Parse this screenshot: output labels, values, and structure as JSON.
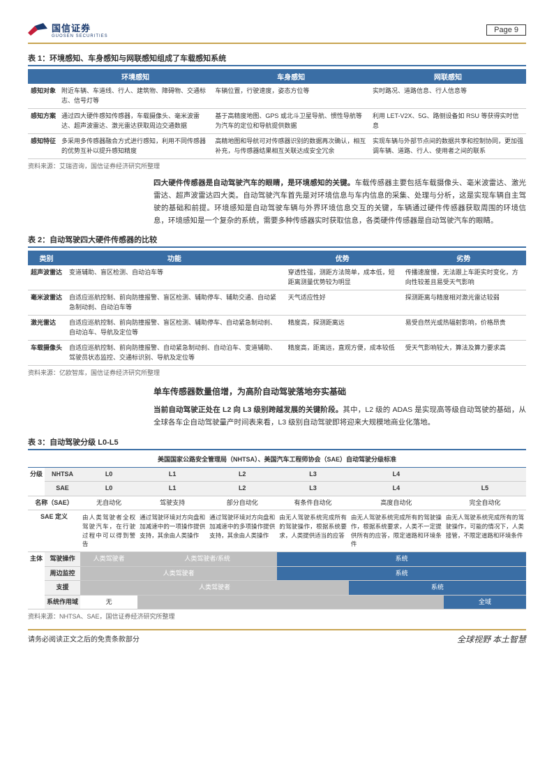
{
  "header": {
    "company_name": "国信证券",
    "company_sub": "GUOSEN SECURITIES",
    "page_label": "Page   9"
  },
  "colors": {
    "accent_border": "#c8a450",
    "table_header_bg": "#3a6ea5",
    "grey_cell": "#bfbfbf"
  },
  "table1": {
    "title": "表 1：环境感知、车身感知与网联感知组成了车载感知系统",
    "columns": [
      "",
      "环境感知",
      "车身感知",
      "网联感知"
    ],
    "rows": [
      {
        "label": "感知对象",
        "c1": "附近车辆、车道线、行人、建筑物、障碍物、交通标志、信号灯等",
        "c2": "车辆位置，行驶速度，姿态方位等",
        "c3": "实时路况、道路信息、行人信息等"
      },
      {
        "label": "感知方案",
        "c1": "通过四大硬件感知传感器，车载摄像头、毫米波雷达、超声波雷达、激光雷达获取周边交通数据",
        "c2": "基于高精度地图、GPS 或北斗卫星导航、惯性导航等为汽车的定位和导航提供数据",
        "c3": "利用 LET-V2X、5G、路侧设备如 RSU 等获得实时信息"
      },
      {
        "label": "感知特征",
        "c1": "多采用多传感器融合方式进行感知，利用不同传感器的优势互补以提升感知精度",
        "c2": "高精地图和导航可对传感器识别的数据再次确认，相互补充，与传感器结果相互关联达成安全冗余",
        "c3": "实现车辆与外部节点间的数据共享和控制协同，更加强调车辆、道路、行人、使用者之间的联系"
      }
    ],
    "source": "资料来源：艾瑞咨询，国信证券经济研究所整理"
  },
  "para1": {
    "bold": "四大硬件传感器是自动驾驶汽车的眼睛，是环境感知的关键。",
    "text": "车载传感器主要包括车载摄像头、毫米波雷达、激光雷达、超声波雷达四大类。自动驾驶汽车首先是对环境信息与车内信息的采集、处理与分析，这是实现车辆自主驾驶的基础和前提。环境感知是自动驾驶车辆与外界环境信息交互的关键，车辆通过硬件传感器获取周围的环境信息，环境感知是一个复杂的系统，需要多种传感器实时获取信息，各类硬件传感器是自动驾驶汽车的眼睛。"
  },
  "table2": {
    "title": "表 2：自动驾驶四大硬件传感器的比较",
    "columns": [
      "类别",
      "功能",
      "优势",
      "劣势"
    ],
    "rows": [
      {
        "label": "超声波雷达",
        "c1": "变道辅助、盲区检测、自动泊车等",
        "c2": "穿透性强，测距方法简单，成本低，短距离测量优势较为明显",
        "c3": "传播速度慢，无法跟上车距实时变化，方向性较差且易受天气影响"
      },
      {
        "label": "毫米波雷达",
        "c1": "自适应巡航控制、前向防撞报警、盲区检测、辅助停车、辅助交通、自动紧急制动刹、自动泊车等",
        "c2": "天气适应性好",
        "c3": "探测距离与精度相对激光雷达较弱"
      },
      {
        "label": "激光雷达",
        "c1": "自适应巡航控制、前向防撞报警、盲区检测、辅助停车、自动紧急制动刹、自动泊车、导航及定位等",
        "c2": "精度高，探测距离远",
        "c3": "易受自然光或热辐射影响，价格昂贵"
      },
      {
        "label": "车载摄像头",
        "c1": "自适应巡航控制、前向防撞报警、自动紧急制动刹、自动泊车、变道辅助、驾驶员状态监控、交通标识别、导航及定位等",
        "c2": "精度高，距离远，直观方便，成本较低",
        "c3": "受天气影响较大，算法及算力要求高"
      }
    ],
    "source": "资料来源：亿欧智库，国信证券经济研究所整理"
  },
  "section_title": "单车传感器数量倍增，为高阶自动驾驶落地夯实基础",
  "para2": {
    "bold": "当前自动驾驶正处在 L2 向 L3 级别跨越发展的关键阶段。",
    "text": "其中，L2 级的 ADAS 是实现高等级自动驾驶的基础，从全球各车企自动驾驶量产时间表来看，L3 级别自动驾驶即将迎来大规模地商业化落地。"
  },
  "table3": {
    "title": "表 3：自动驾驶分级 L0-L5",
    "super_header": "美国国家公路安全管理局（NHTSA）、美国汽车工程师协会（SAE）自动驾驶分级标准",
    "level_rows": [
      {
        "label": "分级",
        "sub1": "NHTSA",
        "cells": [
          "L0",
          "L1",
          "L2",
          "L3",
          "L4",
          ""
        ]
      },
      {
        "label": "",
        "sub1": "SAE",
        "cells": [
          "L0",
          "L1",
          "L2",
          "L3",
          "L4",
          "L5"
        ]
      }
    ],
    "name_row": {
      "label": "名称（SAE）",
      "cells": [
        "无自动化",
        "驾驶支持",
        "部分自动化",
        "有条件自动化",
        "高度自动化",
        "完全自动化"
      ]
    },
    "def_row": {
      "label": "SAE 定义",
      "cells": [
        "由人类驾驶者全权驾驶汽车，在行驶过程中可以得到警告",
        "通过驾驶环境对方向盘和加减速中的一项操作提供支持，其余由人类操作",
        "通过驾驶环境对方向盘和加减速中的多项操作提供支持，其余由人类操作",
        "由无人驾驶系统完成所有的驾驶操作，根据系统要求，人类提供适当的应答",
        "由无人驾驶系统完成所有的驾驶操作，根据系统要求，人类不一定提供所有的应答，限定道路和环境条件",
        "由无人驾驶系统完成所有的驾驶操作，可能的情况下，人类接管，不限定道路和环境条件"
      ]
    },
    "entity_rows": [
      {
        "label": "主体",
        "sub": "驾驶操作",
        "cells": [
          {
            "t": "人类驾驶者",
            "c": "grey"
          },
          {
            "t": "人类驾驶者/系统",
            "c": "grey",
            "span": 2
          },
          {
            "t": "系统",
            "c": "blue",
            "span": 3
          }
        ]
      },
      {
        "label": "",
        "sub": "周边监控",
        "cells": [
          {
            "t": "人类驾驶者",
            "c": "grey",
            "span": 3
          },
          {
            "t": "系统",
            "c": "blue",
            "span": 3
          }
        ]
      },
      {
        "label": "",
        "sub": "支援",
        "cells": [
          {
            "t": "人类驾驶者",
            "c": "grey",
            "span": 4
          },
          {
            "t": "系统",
            "c": "blue",
            "span": 2
          }
        ]
      },
      {
        "label": "",
        "sub": "系统作用域",
        "cells": [
          {
            "t": "无",
            "c": "plain"
          },
          {
            "t": "",
            "c": "grey",
            "span": 4
          },
          {
            "t": "全域",
            "c": "blue"
          }
        ]
      }
    ],
    "source": "资料来源：NHTSA、SAE，国信证券经济研究所整理"
  },
  "footer": {
    "left": "请务必阅读正文之后的免责条款部分",
    "right": "全球视野  本土智慧"
  }
}
